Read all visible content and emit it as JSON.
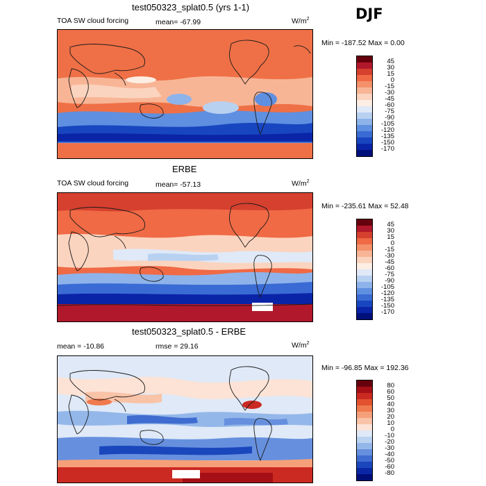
{
  "season": "DJF",
  "units_main": "W/m",
  "units_sup": "2",
  "colors": {
    "ocean_warm": "#ef7046",
    "ocean_cool": "#2f6fd8",
    "deep_blue": "#0a2fb6",
    "pale": "#fbe3d2",
    "coast": "#1a1a1a"
  },
  "panels": [
    {
      "title": "test050323_splat0.5 (yrs 1-1)",
      "variable": "TOA SW cloud forcing",
      "stat": "mean= -67.99",
      "minmax": "Min = -187.52  Max =    0.00",
      "levels": [
        "45",
        "30",
        "15",
        "0",
        "-15",
        "-30",
        "-45",
        "-60",
        "-75",
        "-90",
        "-105",
        "-120",
        "-135",
        "-150",
        "-170"
      ],
      "colors": [
        "#67000d",
        "#b2182b",
        "#d6402f",
        "#ef6a45",
        "#f4916a",
        "#f8b596",
        "#fbd4bf",
        "#fdeee4",
        "#dfe9f7",
        "#b9d1f1",
        "#8eb3ea",
        "#5f8fe0",
        "#3a6bd4",
        "#1846c0",
        "#0a24a8",
        "#00107a"
      ]
    },
    {
      "title": "ERBE",
      "variable": "TOA SW cloud forcing",
      "stat": "mean= -57.13",
      "minmax": "Min = -235.61  Max =  52.48",
      "levels": [
        "45",
        "30",
        "15",
        "0",
        "-15",
        "-30",
        "-45",
        "-60",
        "-75",
        "-90",
        "-105",
        "-120",
        "-135",
        "-150",
        "-170"
      ],
      "colors": [
        "#67000d",
        "#b2182b",
        "#d6402f",
        "#ef6a45",
        "#f4916a",
        "#f8b596",
        "#fbd4bf",
        "#fdeee4",
        "#dfe9f7",
        "#b9d1f1",
        "#8eb3ea",
        "#5f8fe0",
        "#3a6bd4",
        "#1846c0",
        "#0a24a8",
        "#00107a"
      ]
    },
    {
      "title": "test050323_splat0.5 - ERBE",
      "variable": "mean = -10.86",
      "stat": "rmse =  29.16",
      "minmax": "Min = -96.85  Max = 192.36",
      "levels": [
        "80",
        "60",
        "50",
        "40",
        "30",
        "20",
        "10",
        "0",
        "-10",
        "-20",
        "-30",
        "-40",
        "-50",
        "-60",
        "-80"
      ],
      "colors": [
        "#67000d",
        "#a50f15",
        "#cb2a22",
        "#e3522e",
        "#f07a4e",
        "#f6a07a",
        "#f9c3a7",
        "#fce3d6",
        "#dfe9f7",
        "#bcd3f2",
        "#94b7ea",
        "#6690de",
        "#3f6cd0",
        "#1b47bd",
        "#0a27a6",
        "#000e78"
      ]
    }
  ]
}
